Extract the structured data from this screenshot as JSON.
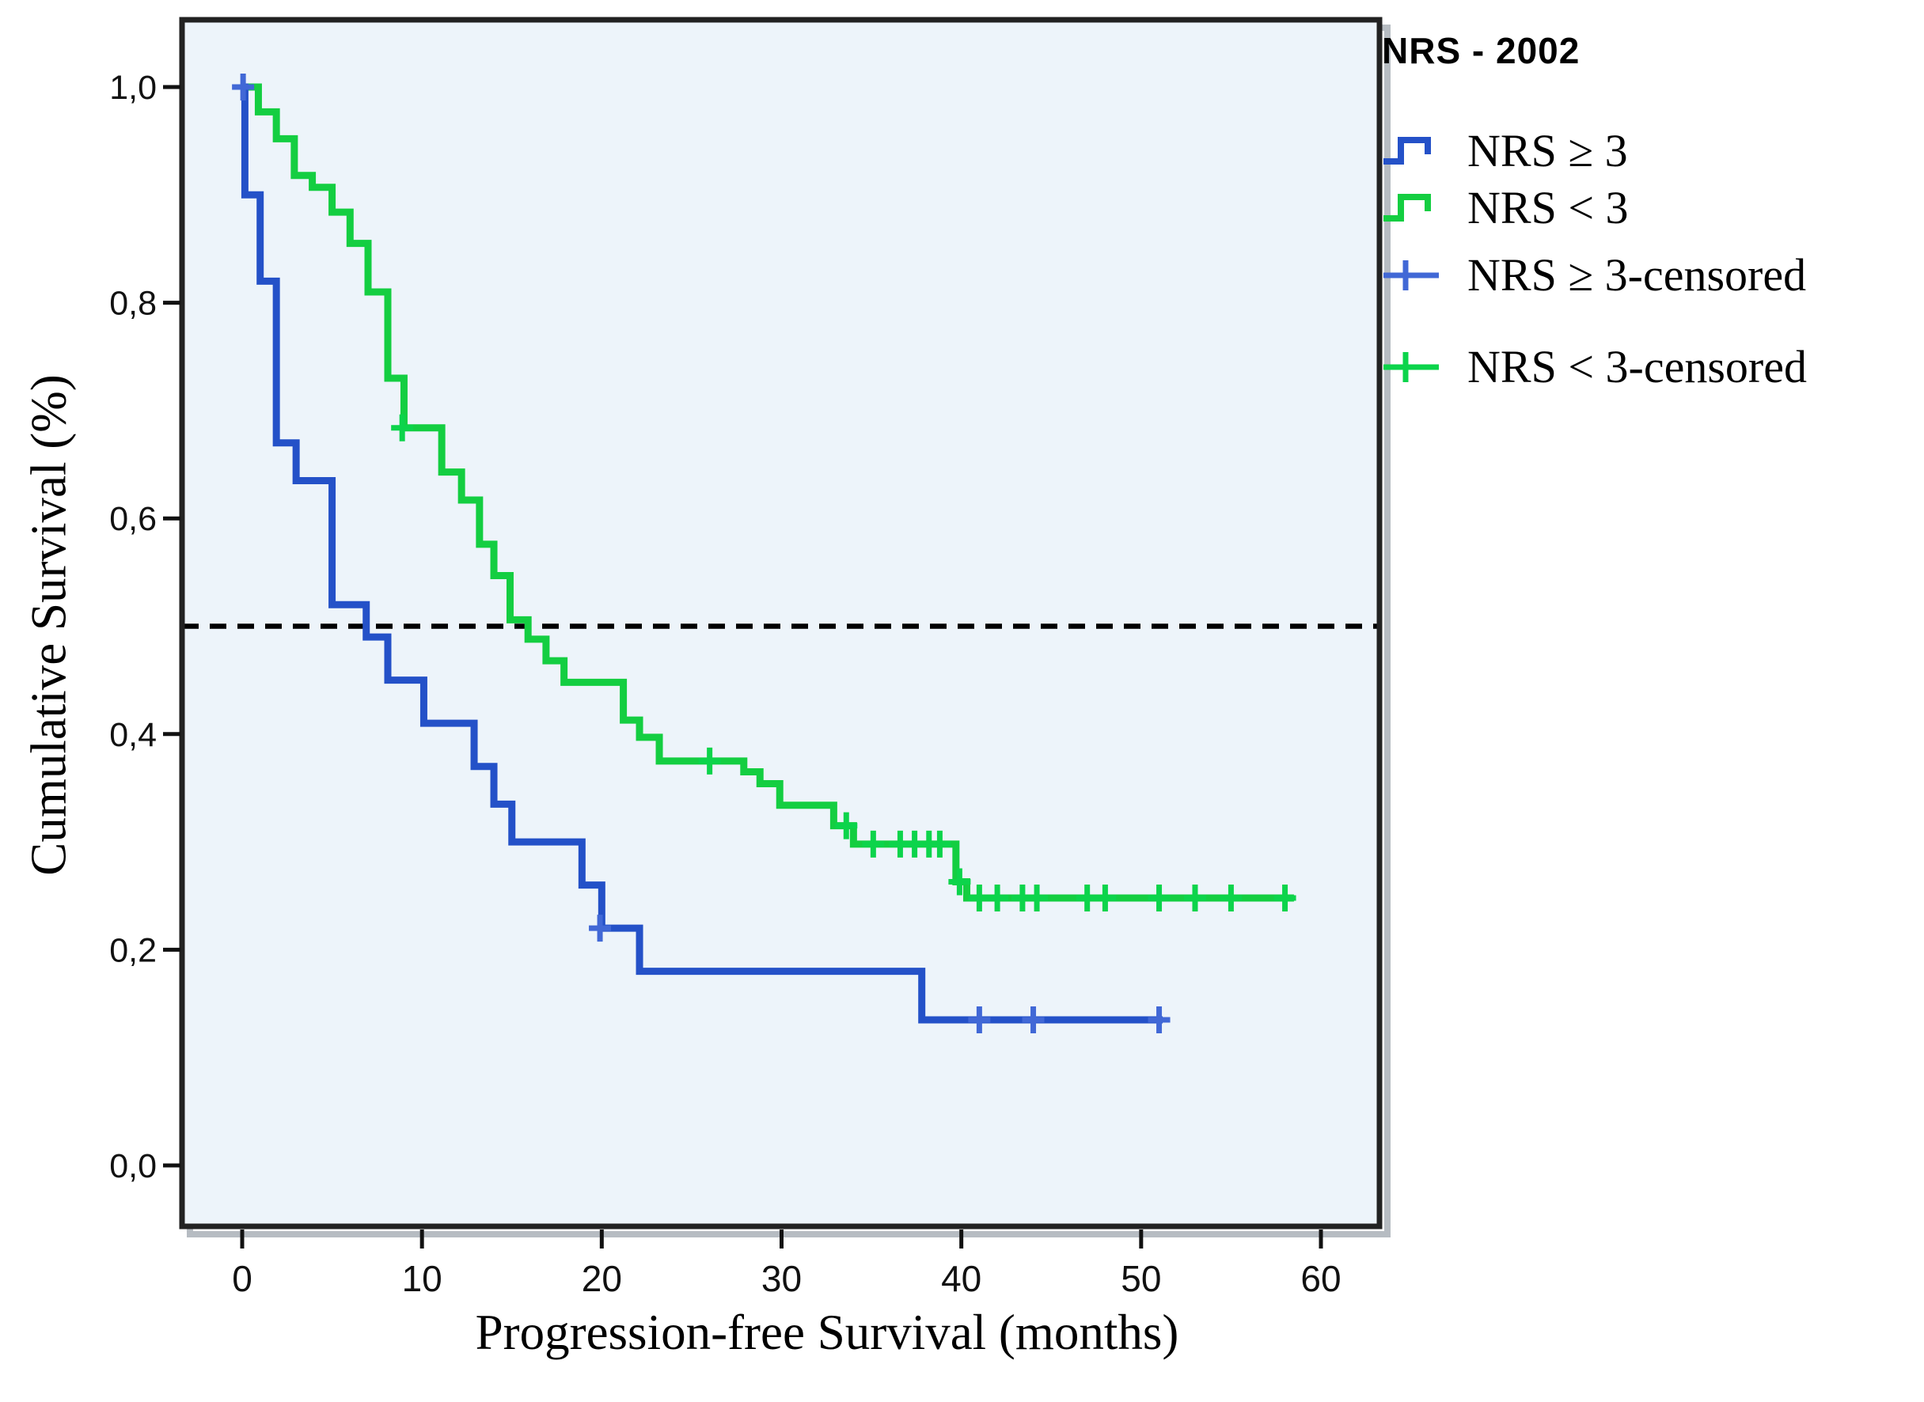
{
  "chart_data": {
    "type": "line",
    "subtype": "kaplan-meier-step",
    "xlabel": "Progression-free Survival (months)",
    "ylabel": "Cumulative Survival (%)",
    "xlim": [
      0,
      60
    ],
    "ylim": [
      0.0,
      1.0
    ],
    "grid": "off",
    "x_ticks": [
      {
        "value": 0,
        "label": "0"
      },
      {
        "value": 10,
        "label": "10"
      },
      {
        "value": 20,
        "label": "20"
      },
      {
        "value": 30,
        "label": "30"
      },
      {
        "value": 40,
        "label": "40"
      },
      {
        "value": 50,
        "label": "50"
      },
      {
        "value": 60,
        "label": "60"
      }
    ],
    "y_ticks": [
      {
        "value": 1.0,
        "label": "1,0"
      },
      {
        "value": 0.8,
        "label": "0,8"
      },
      {
        "value": 0.6,
        "label": "0,6"
      },
      {
        "value": 0.4,
        "label": "0,4"
      },
      {
        "value": 0.2,
        "label": "0,2"
      },
      {
        "value": 0.0,
        "label": "0,0"
      }
    ],
    "reference_line": {
      "y": 0.5,
      "style": "dashed",
      "color": "#000000"
    },
    "colors": {
      "plot_background": "#edf4fa",
      "frame": "#222222",
      "frame_shadow": "#b6bcc2",
      "tick_text": "#111111"
    },
    "legend": {
      "title": "NRS - 2002",
      "position": "right-top",
      "items": [
        {
          "label": "NRS ≥ 3",
          "marker": "step-line",
          "color": "#2451c8"
        },
        {
          "label": "NRS < 3",
          "marker": "step-line",
          "color": "#14ce41"
        },
        {
          "label": "NRS ≥ 3-censored",
          "marker": "plus-marker",
          "color": "#4168d6"
        },
        {
          "label": "NRS < 3-censored",
          "marker": "plus-marker",
          "color": "#0cd44b"
        }
      ]
    },
    "series": [
      {
        "id": "nrs-ge3",
        "name": "NRS ≥ 3",
        "color": "#2451c8",
        "censor_color": "#4168d6",
        "start": [
          0,
          1.0
        ],
        "steps": [
          [
            0.15,
            0.9
          ],
          [
            1,
            0.82
          ],
          [
            1.9,
            0.67
          ],
          [
            3,
            0.635
          ],
          [
            5,
            0.52
          ],
          [
            6.9,
            0.49
          ],
          [
            8.1,
            0.45
          ],
          [
            10.1,
            0.41
          ],
          [
            12.9,
            0.37
          ],
          [
            14,
            0.335
          ],
          [
            15,
            0.3
          ],
          [
            18.9,
            0.26
          ],
          [
            20,
            0.22
          ],
          [
            22.1,
            0.18
          ],
          [
            37.8,
            0.135
          ]
        ],
        "end_x": 51.2,
        "censored": [
          [
            0.05,
            1.0
          ],
          [
            19.9,
            0.22
          ],
          [
            41,
            0.135
          ],
          [
            44,
            0.135
          ],
          [
            51,
            0.135
          ]
        ]
      },
      {
        "id": "nrs-lt3",
        "name": "NRS < 3",
        "color": "#14ce41",
        "censor_color": "#0cd44b",
        "start": [
          0,
          1.0
        ],
        "steps": [
          [
            0.9,
            0.977
          ],
          [
            1.9,
            0.952
          ],
          [
            2.9,
            0.918
          ],
          [
            3.9,
            0.907
          ],
          [
            5,
            0.884
          ],
          [
            6,
            0.855
          ],
          [
            7,
            0.81
          ],
          [
            8.1,
            0.73
          ],
          [
            9,
            0.684
          ],
          [
            11.1,
            0.643
          ],
          [
            12.2,
            0.617
          ],
          [
            13.2,
            0.576
          ],
          [
            14,
            0.547
          ],
          [
            14.9,
            0.506
          ],
          [
            15.9,
            0.488
          ],
          [
            16.9,
            0.468
          ],
          [
            17.9,
            0.448
          ],
          [
            21.2,
            0.413
          ],
          [
            22.1,
            0.397
          ],
          [
            23.2,
            0.375
          ],
          [
            27.9,
            0.365
          ],
          [
            28.8,
            0.354
          ],
          [
            29.9,
            0.334
          ],
          [
            32.9,
            0.315
          ],
          [
            34,
            0.298
          ],
          [
            39.7,
            0.263
          ],
          [
            40.3,
            0.248
          ]
        ],
        "end_x": 58.5,
        "censored": [
          [
            8.9,
            0.684
          ],
          [
            26,
            0.375
          ],
          [
            33.6,
            0.315
          ],
          [
            35.1,
            0.298
          ],
          [
            36.6,
            0.298
          ],
          [
            37.4,
            0.298
          ],
          [
            38.2,
            0.298
          ],
          [
            38.8,
            0.298
          ],
          [
            39.9,
            0.263
          ],
          [
            41,
            0.248
          ],
          [
            42,
            0.248
          ],
          [
            43.4,
            0.248
          ],
          [
            44.2,
            0.248
          ],
          [
            47,
            0.248
          ],
          [
            48,
            0.248
          ],
          [
            51,
            0.248
          ],
          [
            53,
            0.248
          ],
          [
            55,
            0.248
          ],
          [
            58,
            0.248
          ]
        ]
      }
    ]
  }
}
